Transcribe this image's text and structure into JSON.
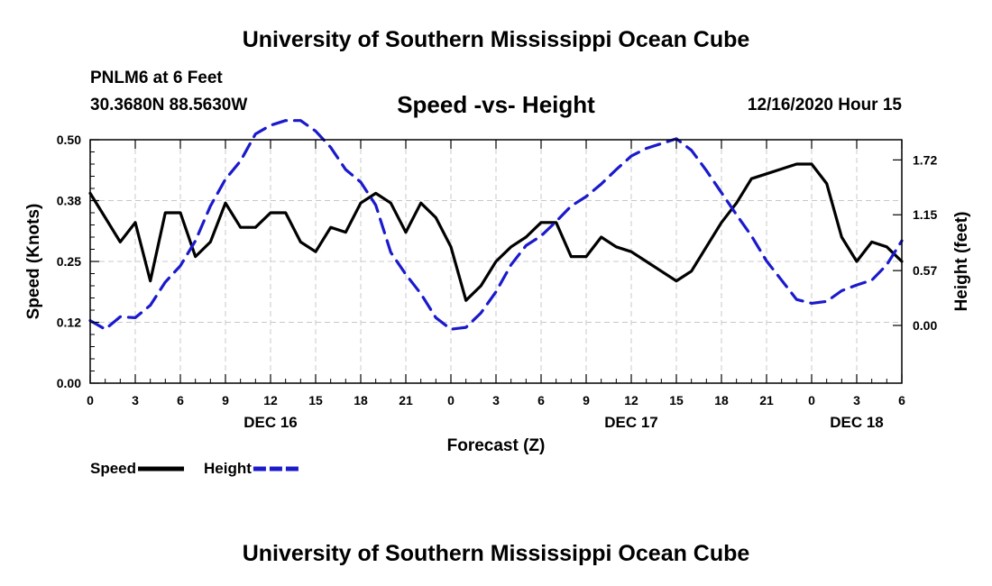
{
  "header": {
    "org_title": "University of Southern Mississippi Ocean Cube",
    "station": "PNLM6 at 6 Feet",
    "coordinates": "30.3680N 88.5630W",
    "chart_title": "Speed -vs- Height",
    "datetime": "12/16/2020 Hour 15"
  },
  "footer": {
    "org_title": "University of Southern Mississippi Ocean Cube"
  },
  "colors": {
    "speed": "#000000",
    "height": "#1a1acc",
    "grid": "#c8c8c8"
  },
  "chart_data": {
    "type": "line",
    "title": "Speed -vs- Height",
    "xlabel": "Forecast (Z)",
    "ylabel": "Speed (Knots)",
    "y2label": "Height (feet)",
    "x_unit": "hours from 12/16 00Z",
    "xlim": [
      0,
      54
    ],
    "ylim": [
      0,
      0.5
    ],
    "y2lim": [
      -0.6,
      1.93
    ],
    "x_ticks": [
      0,
      3,
      6,
      9,
      12,
      15,
      18,
      21,
      24,
      27,
      30,
      33,
      36,
      39,
      42,
      45,
      48,
      51,
      54
    ],
    "x_tick_labels": [
      "0",
      "3",
      "6",
      "9",
      "12",
      "15",
      "18",
      "21",
      "0",
      "3",
      "6",
      "9",
      "12",
      "15",
      "18",
      "21",
      "0",
      "3",
      "6"
    ],
    "y_ticks": [
      0,
      0.125,
      0.25,
      0.375,
      0.5
    ],
    "y_tick_labels": [
      "0.00",
      "0.12",
      "0.25",
      "0.38",
      "0.50"
    ],
    "y2_ticks": [
      0,
      0.57,
      1.15,
      1.72
    ],
    "y2_tick_labels": [
      "0.00",
      "0.57",
      "1.15",
      "1.72"
    ],
    "date_labels": [
      {
        "x": 12,
        "label": "DEC 16"
      },
      {
        "x": 36,
        "label": "DEC 17"
      },
      {
        "x": 51,
        "label": "DEC 18"
      }
    ],
    "grid": true,
    "legend_position": "bottom-left",
    "series": [
      {
        "name": "Speed",
        "axis": "left",
        "style": "solid",
        "x": [
          0,
          1,
          2,
          3,
          4,
          5,
          6,
          7,
          8,
          9,
          10,
          11,
          12,
          13,
          14,
          15,
          16,
          17,
          18,
          19,
          20,
          21,
          22,
          23,
          24,
          25,
          26,
          27,
          28,
          29,
          30,
          31,
          32,
          33,
          34,
          35,
          36,
          37,
          38,
          39,
          40,
          41,
          42,
          43,
          44,
          45,
          46,
          47,
          48,
          49,
          50,
          51,
          52,
          53,
          54
        ],
        "values": [
          0.39,
          0.34,
          0.29,
          0.33,
          0.21,
          0.35,
          0.35,
          0.26,
          0.29,
          0.37,
          0.32,
          0.32,
          0.35,
          0.35,
          0.29,
          0.27,
          0.32,
          0.31,
          0.37,
          0.39,
          0.37,
          0.31,
          0.37,
          0.34,
          0.28,
          0.17,
          0.2,
          0.25,
          0.28,
          0.3,
          0.33,
          0.33,
          0.26,
          0.26,
          0.3,
          0.28,
          0.27,
          0.25,
          0.23,
          0.21,
          0.23,
          0.28,
          0.33,
          0.37,
          0.42,
          0.43,
          0.44,
          0.45,
          0.45,
          0.41,
          0.3,
          0.25,
          0.29,
          0.28,
          0.25
        ]
      },
      {
        "name": "Height",
        "axis": "right",
        "style": "dashed",
        "x": [
          0,
          1,
          2,
          3,
          4,
          5,
          6,
          7,
          8,
          9,
          10,
          11,
          12,
          13,
          14,
          15,
          16,
          17,
          18,
          19,
          20,
          21,
          22,
          23,
          24,
          25,
          26,
          27,
          28,
          29,
          30,
          31,
          32,
          33,
          34,
          35,
          36,
          37,
          38,
          39,
          40,
          41,
          42,
          43,
          44,
          45,
          46,
          47,
          48,
          49,
          50,
          51,
          52,
          53,
          54
        ],
        "values": [
          0.05,
          -0.04,
          0.09,
          0.08,
          0.21,
          0.45,
          0.62,
          0.88,
          1.24,
          1.52,
          1.71,
          1.99,
          2.08,
          2.13,
          2.13,
          2.02,
          1.85,
          1.62,
          1.49,
          1.25,
          0.76,
          0.53,
          0.33,
          0.08,
          -0.04,
          -0.02,
          0.13,
          0.35,
          0.63,
          0.83,
          0.93,
          1.08,
          1.24,
          1.34,
          1.47,
          1.62,
          1.76,
          1.84,
          1.89,
          1.94,
          1.82,
          1.61,
          1.38,
          1.15,
          0.93,
          0.67,
          0.47,
          0.27,
          0.23,
          0.25,
          0.36,
          0.42,
          0.47,
          0.63,
          0.88
        ]
      }
    ]
  }
}
